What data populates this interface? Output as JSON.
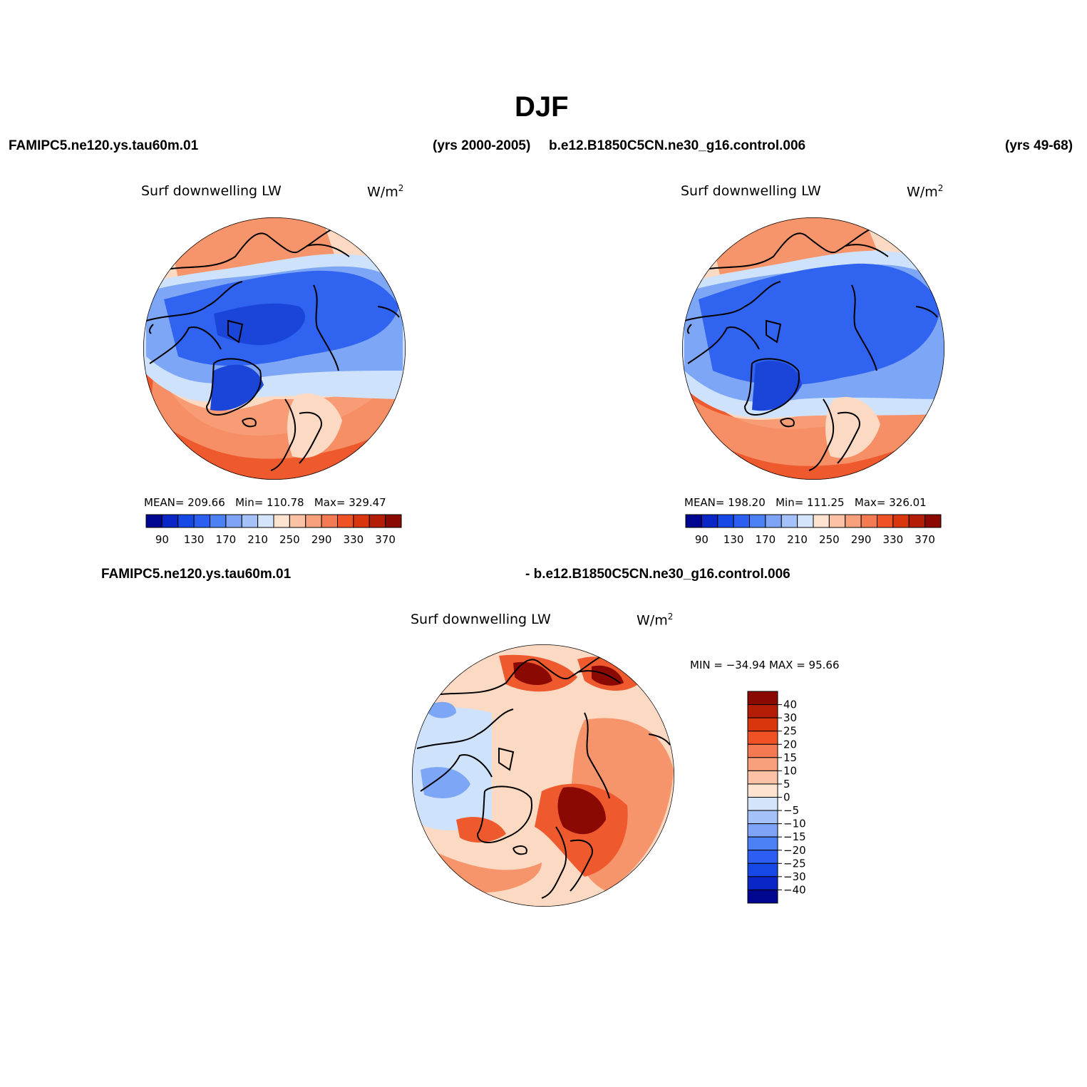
{
  "page": {
    "title": "DJF",
    "header_left_case": "FAMIPC5.ne120.ys.tau60m.01",
    "header_left_years": "(yrs 2000-2005)",
    "header_right_case": "b.e12.B1850C5CN.ne30_g16.control.006",
    "header_right_years": "(yrs 49-68)",
    "diff_left_label": "FAMIPC5.ne120.ys.tau60m.01",
    "diff_right_label": "- b.e12.B1850C5CN.ne30_g16.control.006"
  },
  "panels": [
    {
      "id": "panel-test",
      "variable": "Surf downwelling LW",
      "units": "W/m",
      "units_sup": "2",
      "stats": {
        "mean_label": "MEAN=",
        "mean": "209.66",
        "min_label": "Min=",
        "min": "110.78",
        "max_label": "Max=",
        "max": "329.47"
      }
    },
    {
      "id": "panel-control",
      "variable": "Surf downwelling LW",
      "units": "W/m",
      "units_sup": "2",
      "stats": {
        "mean_label": "MEAN=",
        "mean": "198.20",
        "min_label": "Min=",
        "min": "111.25",
        "max_label": "Max=",
        "max": "326.01"
      }
    },
    {
      "id": "panel-diff",
      "variable": "Surf downwelling LW",
      "units": "W/m",
      "units_sup": "2",
      "stats_line": "MIN = −34.94 MAX =  95.66"
    }
  ],
  "colorbar_abs": {
    "colors": [
      "#00068f",
      "#0a26c7",
      "#1648e6",
      "#2c5ef2",
      "#4c80f5",
      "#7fa3f7",
      "#a5c1f9",
      "#d4e5fb",
      "#fde3d0",
      "#fbc2a5",
      "#f7a07b",
      "#f37a52",
      "#ef5325",
      "#d9360e",
      "#b41d06",
      "#8a0a03"
    ],
    "tick_labels": [
      "90",
      "130",
      "170",
      "210",
      "250",
      "290",
      "330",
      "370"
    ]
  },
  "colorbar_diff": {
    "colors": [
      "#8a0a03",
      "#b41d06",
      "#d9360e",
      "#ef5325",
      "#f37a52",
      "#f7a07b",
      "#fbc2a5",
      "#fde3d0",
      "#d4e5fb",
      "#a5c1f9",
      "#7fa3f7",
      "#4c80f5",
      "#2c5ef2",
      "#1648e6",
      "#0a26c7",
      "#00068f"
    ],
    "tick_labels": [
      "40",
      "30",
      "25",
      "20",
      "15",
      "10",
      "5",
      "0",
      "−5",
      "−10",
      "−15",
      "−20",
      "−25",
      "−30",
      "−40"
    ]
  },
  "map_colors": {
    "deep_blue": "#1a45d8",
    "mid_blue": "#2f63f0",
    "light_blue": "#7ea6f6",
    "pale_blue": "#cfe2fb",
    "pale_orange": "#fcd9c2",
    "orange": "#f6956b",
    "red_orange": "#ee5a2e",
    "dark_red": "#8a0a03",
    "coast": "#000000"
  }
}
